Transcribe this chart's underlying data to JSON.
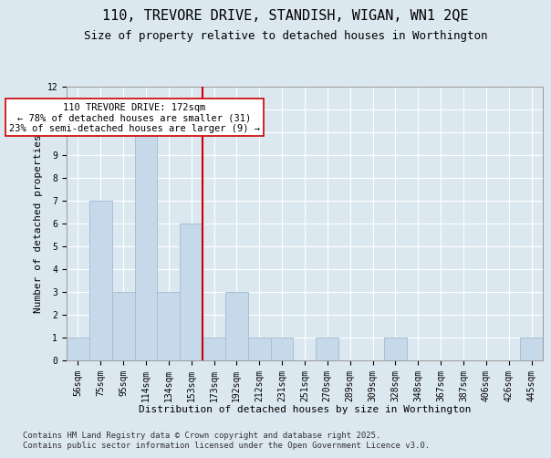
{
  "title1": "110, TREVORE DRIVE, STANDISH, WIGAN, WN1 2QE",
  "title2": "Size of property relative to detached houses in Worthington",
  "xlabel": "Distribution of detached houses by size in Worthington",
  "ylabel": "Number of detached properties",
  "categories": [
    "56sqm",
    "75sqm",
    "95sqm",
    "114sqm",
    "134sqm",
    "153sqm",
    "173sqm",
    "192sqm",
    "212sqm",
    "231sqm",
    "251sqm",
    "270sqm",
    "289sqm",
    "309sqm",
    "328sqm",
    "348sqm",
    "367sqm",
    "387sqm",
    "406sqm",
    "426sqm",
    "445sqm"
  ],
  "values": [
    1,
    7,
    3,
    11,
    3,
    6,
    1,
    3,
    1,
    1,
    0,
    1,
    0,
    0,
    1,
    0,
    0,
    0,
    0,
    0,
    1
  ],
  "bar_color": "#c6d9ea",
  "bar_edgecolor": "#a8c0d4",
  "highlight_line_color": "#cc0000",
  "annotation_text": "110 TREVORE DRIVE: 172sqm\n← 78% of detached houses are smaller (31)\n23% of semi-detached houses are larger (9) →",
  "annotation_box_color": "#ffffff",
  "annotation_box_edgecolor": "#cc0000",
  "ylim": [
    0,
    12
  ],
  "yticks": [
    0,
    1,
    2,
    3,
    4,
    5,
    6,
    7,
    8,
    9,
    10,
    11,
    12
  ],
  "background_color": "#dce8f0",
  "footer_text": "Contains HM Land Registry data © Crown copyright and database right 2025.\nContains public sector information licensed under the Open Government Licence v3.0.",
  "title_fontsize": 11,
  "subtitle_fontsize": 9,
  "axis_label_fontsize": 8,
  "tick_fontsize": 7,
  "annotation_fontsize": 7.5,
  "footer_fontsize": 6.5
}
